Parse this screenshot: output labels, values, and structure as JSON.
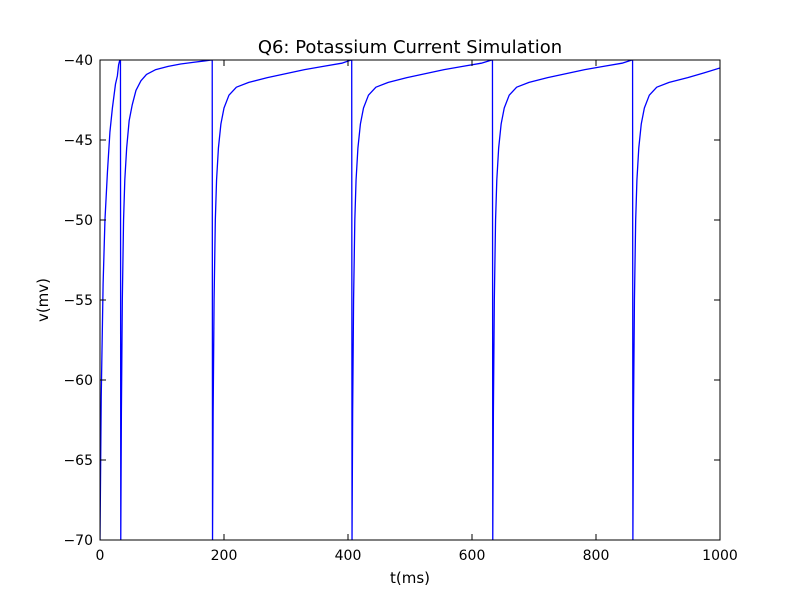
{
  "chart_data": {
    "type": "line",
    "title": "Q6: Potassium Current Simulation",
    "xlabel": "t(ms)",
    "ylabel": "v(mv)",
    "xlim": [
      0,
      1000
    ],
    "ylim": [
      -70,
      -40
    ],
    "x_ticks": [
      0,
      200,
      400,
      600,
      800,
      1000
    ],
    "y_ticks": [
      -70,
      -65,
      -60,
      -55,
      -50,
      -45,
      -40
    ],
    "x_tick_labels": [
      "0",
      "200",
      "400",
      "600",
      "800",
      "1000"
    ],
    "y_tick_labels": [
      "−70",
      "−65",
      "−60",
      "−55",
      "−50",
      "−45",
      "−40"
    ],
    "grid": false,
    "legend": "none",
    "line_color": "#0000ff",
    "series": [
      {
        "points": [
          [
            0,
            -70
          ],
          [
            2,
            -61
          ],
          [
            5,
            -54
          ],
          [
            8,
            -50
          ],
          [
            12,
            -47
          ],
          [
            16,
            -44.5
          ],
          [
            20,
            -43
          ],
          [
            25,
            -41.5
          ],
          [
            28,
            -41
          ],
          [
            30,
            -40.3
          ],
          [
            32,
            -40
          ],
          [
            33,
            -40
          ],
          [
            33.5,
            -70
          ],
          [
            34.5,
            -62
          ],
          [
            36,
            -55
          ],
          [
            38,
            -50
          ],
          [
            40,
            -47.5
          ],
          [
            43,
            -45.5
          ],
          [
            47,
            -43.8
          ],
          [
            52,
            -42.8
          ],
          [
            58,
            -41.9
          ],
          [
            66,
            -41.3
          ],
          [
            75,
            -40.9
          ],
          [
            90,
            -40.6
          ],
          [
            110,
            -40.4
          ],
          [
            130,
            -40.25
          ],
          [
            150,
            -40.15
          ],
          [
            170,
            -40.05
          ],
          [
            180,
            -40
          ],
          [
            181,
            -40
          ],
          [
            181.5,
            -70
          ],
          [
            182.5,
            -62
          ],
          [
            184,
            -55
          ],
          [
            186,
            -50
          ],
          [
            188,
            -47.5
          ],
          [
            191,
            -45.5
          ],
          [
            195,
            -44
          ],
          [
            200,
            -43
          ],
          [
            208,
            -42.2
          ],
          [
            220,
            -41.7
          ],
          [
            240,
            -41.4
          ],
          [
            270,
            -41.1
          ],
          [
            300,
            -40.85
          ],
          [
            330,
            -40.6
          ],
          [
            360,
            -40.4
          ],
          [
            390,
            -40.2
          ],
          [
            405,
            -40
          ],
          [
            406,
            -40
          ],
          [
            406.5,
            -70
          ],
          [
            407.5,
            -62
          ],
          [
            409,
            -55
          ],
          [
            411,
            -50
          ],
          [
            413,
            -47.5
          ],
          [
            416,
            -45.5
          ],
          [
            420,
            -44
          ],
          [
            425,
            -43
          ],
          [
            433,
            -42.2
          ],
          [
            445,
            -41.7
          ],
          [
            465,
            -41.4
          ],
          [
            495,
            -41.1
          ],
          [
            525,
            -40.85
          ],
          [
            555,
            -40.6
          ],
          [
            585,
            -40.4
          ],
          [
            615,
            -40.2
          ],
          [
            632,
            -40
          ],
          [
            633,
            -40
          ],
          [
            633.5,
            -70
          ],
          [
            634.5,
            -62
          ],
          [
            636,
            -55
          ],
          [
            638,
            -50
          ],
          [
            640,
            -47.5
          ],
          [
            643,
            -45.5
          ],
          [
            647,
            -44
          ],
          [
            652,
            -43
          ],
          [
            660,
            -42.2
          ],
          [
            672,
            -41.7
          ],
          [
            692,
            -41.4
          ],
          [
            722,
            -41.1
          ],
          [
            752,
            -40.85
          ],
          [
            782,
            -40.6
          ],
          [
            812,
            -40.4
          ],
          [
            842,
            -40.2
          ],
          [
            858,
            -40
          ],
          [
            859,
            -40
          ],
          [
            859.5,
            -70
          ],
          [
            860.5,
            -62
          ],
          [
            862,
            -55
          ],
          [
            864,
            -50
          ],
          [
            866,
            -47.5
          ],
          [
            869,
            -45.5
          ],
          [
            873,
            -44
          ],
          [
            878,
            -43
          ],
          [
            886,
            -42.2
          ],
          [
            898,
            -41.7
          ],
          [
            918,
            -41.4
          ],
          [
            948,
            -41.1
          ],
          [
            975,
            -40.8
          ],
          [
            1000,
            -40.5
          ]
        ]
      }
    ]
  }
}
